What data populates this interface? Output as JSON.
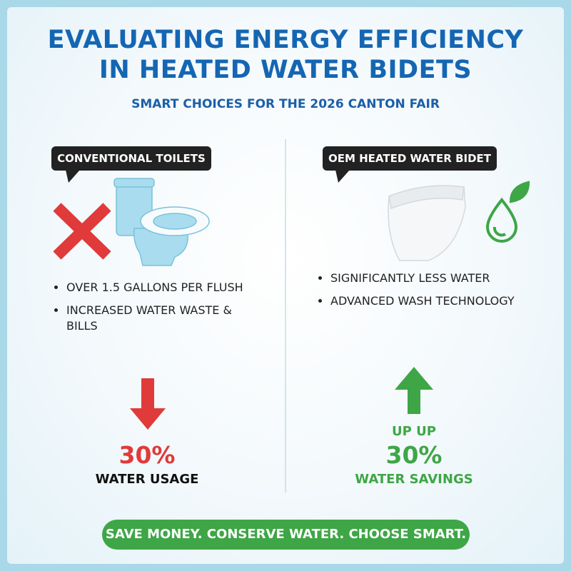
{
  "header": {
    "title_lines": [
      "EVALUATING ENERGY EFFICIENCY",
      "IN HEATED WATER BIDETS"
    ],
    "subtitle": "SMART CHOICES FOR THE 2026 CANTON FAIR"
  },
  "left": {
    "label": "CONVENTIONAL TOILETS",
    "bullets": [
      "OVER 1.5 GALLONS PER FLUSH",
      "INCREASED WATER WASTE & BILLS"
    ],
    "stat": "30%",
    "caption": "WATER USAGE"
  },
  "right": {
    "label": "OEM HEATED WATER BIDET",
    "bullets": [
      "SIGNIFICANTLY LESS WATER",
      "ADVANCED WASH TECHNOLOGY"
    ],
    "pre_stat": "UP UP",
    "stat": "30%",
    "caption": "WATER SAVINGS"
  },
  "footer": "SAVE MONEY. CONSERVE WATER. CHOOSE SMART."
}
